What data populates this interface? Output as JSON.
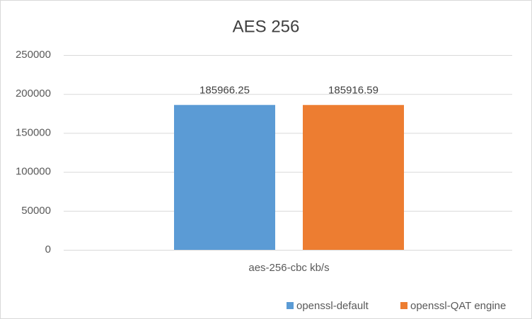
{
  "chart_data": {
    "type": "bar",
    "title": "AES 256",
    "categories": [
      "aes-256-cbc kb/s"
    ],
    "series": [
      {
        "name": "openssl-default",
        "color": "#5b9bd5",
        "values": [
          185966.25
        ]
      },
      {
        "name": "openssl-QAT engine",
        "color": "#ed7d31",
        "values": [
          185916.59
        ]
      }
    ],
    "ylim": [
      0,
      250000
    ],
    "yticks": [
      0,
      50000,
      100000,
      150000,
      200000,
      250000
    ],
    "grid": true,
    "legend": "bottom"
  }
}
